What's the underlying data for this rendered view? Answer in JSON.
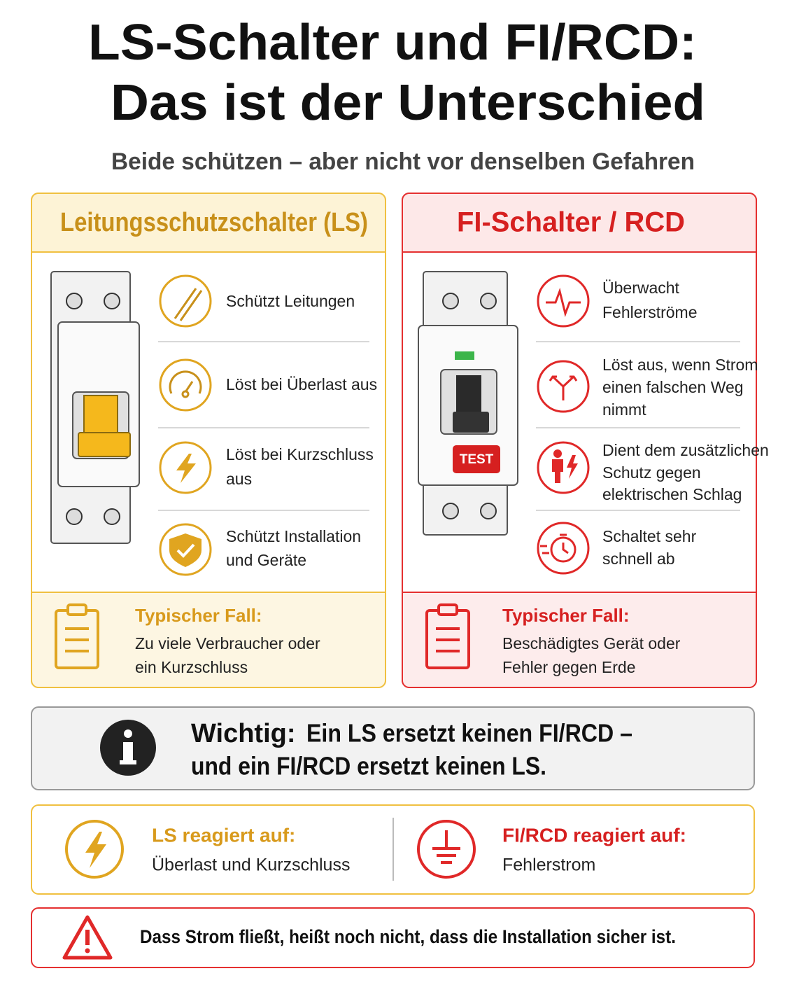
{
  "header": {
    "title_lines": [
      "LS-Schalter und FI/RCD:",
      "Das ist der Unterschied"
    ],
    "subtitle": "Beide schützen – aber nicht vor denselben Gefahren"
  },
  "panels": [
    {
      "title": "Leitungsschutzschalter (LS)",
      "features": [
        {
          "lines": [
            "Schützt Leitungen"
          ]
        },
        {
          "lines": [
            "Löst bei Überlast aus"
          ]
        },
        {
          "lines": [
            "Löst bei Kurzschluss",
            "aus"
          ]
        },
        {
          "lines": [
            "Schützt Installation",
            "und Geräte"
          ]
        }
      ],
      "case": {
        "label": "Typischer Fall:",
        "lines": [
          "Zu viele Verbraucher oder",
          "ein Kurzschluss"
        ]
      }
    },
    {
      "title": "FI-Schalter / RCD",
      "device_label": "TEST",
      "features": [
        {
          "lines": [
            "Überwacht",
            "Fehlerströme"
          ]
        },
        {
          "lines": [
            "Löst aus, wenn Strom",
            "einen falschen Weg",
            "nimmt"
          ]
        },
        {
          "lines": [
            "Dient dem zusätzlichen",
            "Schutz gegen",
            "elektrischen Schlag"
          ]
        },
        {
          "lines": [
            "Schaltet sehr",
            "schnell ab"
          ]
        }
      ],
      "case": {
        "label": "Typischer Fall:",
        "lines": [
          "Beschädigtes Gerät oder",
          "Fehler gegen Erde"
        ]
      }
    }
  ],
  "important": {
    "label": "Wichtig:",
    "lines": [
      "Ein LS ersetzt keinen FI/RCD –",
      "und ein FI/RCD ersetzt keinen LS."
    ]
  },
  "reacts": [
    {
      "label": "LS reagiert auf:",
      "text": "Überlast und Kurzschluss"
    },
    {
      "label": "FI/RCD reagiert auf:",
      "text": "Fehlerstrom"
    }
  ],
  "warning": "Dass Strom fließt, heißt noch nicht, dass die Installation sicher ist."
}
